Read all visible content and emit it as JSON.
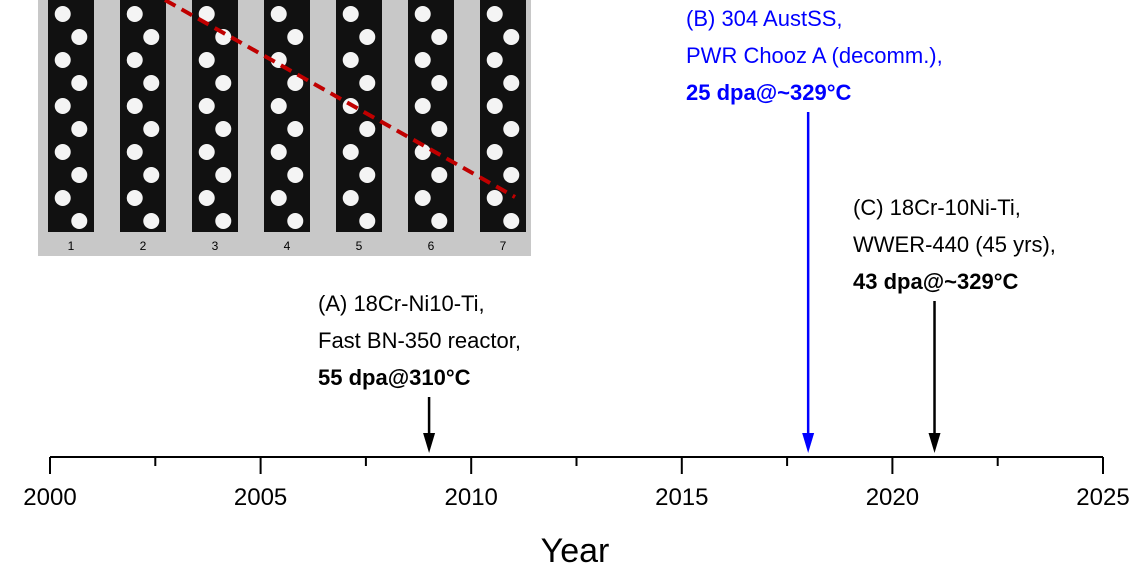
{
  "chart_data": {
    "type": "timeline",
    "x_label": "Year",
    "xlim": [
      2000,
      2025
    ],
    "xticks": [
      2000,
      2005,
      2010,
      2015,
      2020,
      2025
    ],
    "xminor_ticks": [
      2002.5,
      2007.5,
      2012.5,
      2017.5,
      2022.5
    ],
    "annotations": [
      {
        "x": 2009,
        "color": "#000000",
        "lines": [
          "(A) 18Cr-Ni10-Ti,",
          "Fast BN-350 reactor,"
        ],
        "bold_line": "55 dpa@310°C"
      },
      {
        "x": 2018,
        "color": "#0000ff",
        "lines": [
          "(B) 304 AustSS,",
          "PWR Chooz A (decomm.),"
        ],
        "bold_line": "25 dpa@~329°C"
      },
      {
        "x": 2021,
        "color": "#000000",
        "lines": [
          "(C) 18Cr-10Ni-Ti,",
          "WWER-440 (45 yrs),"
        ],
        "bold_line": "43 dpa@~329°C"
      }
    ],
    "image_labels": [
      "1",
      "2",
      "3",
      "4",
      "5",
      "6",
      "7"
    ]
  }
}
